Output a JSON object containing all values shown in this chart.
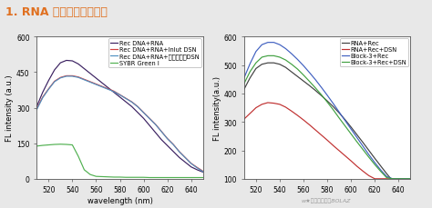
{
  "title": "1. RNA 检测技术应用比较",
  "title_color": "#e07020",
  "bg_color": "#e8e8e8",
  "left": {
    "ylabel": "FL intensity (a.u.)",
    "xlabel": "wavelength (nm)",
    "xlim": [
      510,
      650
    ],
    "ylim": [
      0,
      600
    ],
    "yticks": [
      0,
      150,
      300,
      450,
      600
    ],
    "xticks": [
      520,
      540,
      560,
      580,
      600,
      620,
      640
    ],
    "legend": [
      "Rec DNA+RNA",
      "Rec DNA+RNA+Inlut DSN",
      "Rec DNA+RNA+国外某公司DSN",
      "SYBR Green I"
    ],
    "colors": [
      "#3a2060",
      "#d04040",
      "#5090c0",
      "#50b050"
    ],
    "series": {
      "Rec DNA+RNA": {
        "x": [
          510,
          515,
          520,
          525,
          530,
          535,
          540,
          545,
          550,
          555,
          560,
          565,
          570,
          575,
          580,
          585,
          590,
          595,
          600,
          605,
          610,
          615,
          620,
          625,
          630,
          635,
          640,
          645,
          650
        ],
        "y": [
          305,
          365,
          415,
          460,
          490,
          500,
          498,
          485,
          465,
          445,
          425,
          405,
          385,
          365,
          345,
          325,
          305,
          280,
          255,
          225,
          195,
          165,
          140,
          115,
          90,
          70,
          50,
          38,
          28
        ]
      },
      "Rec DNA+RNA+Inlut DSN": {
        "x": [
          510,
          515,
          520,
          525,
          530,
          535,
          540,
          545,
          550,
          555,
          560,
          565,
          570,
          575,
          580,
          585,
          590,
          595,
          600,
          605,
          610,
          615,
          620,
          625,
          630,
          635,
          640,
          645,
          650
        ],
        "y": [
          295,
          345,
          380,
          412,
          428,
          435,
          435,
          430,
          420,
          410,
          400,
          390,
          380,
          370,
          355,
          340,
          325,
          305,
          280,
          255,
          230,
          200,
          170,
          145,
          115,
          90,
          65,
          48,
          32
        ]
      },
      "Rec DNA+RNA+国外某公司DSN": {
        "x": [
          510,
          515,
          520,
          525,
          530,
          535,
          540,
          545,
          550,
          555,
          560,
          565,
          570,
          575,
          580,
          585,
          590,
          595,
          600,
          605,
          610,
          615,
          620,
          625,
          630,
          635,
          640,
          645,
          650
        ],
        "y": [
          292,
          342,
          378,
          410,
          426,
          433,
          433,
          428,
          418,
          408,
          398,
          388,
          378,
          368,
          354,
          339,
          324,
          304,
          279,
          254,
          229,
          199,
          169,
          144,
          114,
          89,
          64,
          46,
          30
        ]
      },
      "SYBR Green I": {
        "x": [
          510,
          515,
          520,
          525,
          530,
          535,
          540,
          545,
          550,
          555,
          560,
          565,
          570,
          575,
          580,
          585,
          590,
          595,
          600,
          605,
          610,
          615,
          620,
          625,
          630,
          635,
          640,
          645,
          650
        ],
        "y": [
          138,
          141,
          143,
          145,
          146,
          145,
          143,
          95,
          38,
          18,
          10,
          9,
          8,
          7,
          7,
          6,
          6,
          6,
          6,
          5,
          5,
          5,
          5,
          5,
          5,
          5,
          5,
          5,
          5
        ]
      }
    }
  },
  "right": {
    "ylabel": "FL intensity(a.u.)",
    "xlim": [
      510,
      650
    ],
    "ylim": [
      100,
      600
    ],
    "yticks": [
      100,
      200,
      300,
      400,
      500,
      600
    ],
    "xticks": [
      520,
      540,
      560,
      580,
      600,
      620,
      640
    ],
    "legend": [
      "RNA+Rec",
      "RNA+Rec+DSN",
      "Block-3+Rec",
      "Block-3+Rec+DSN"
    ],
    "colors": [
      "#404040",
      "#c03030",
      "#4060c0",
      "#40a040"
    ],
    "series": {
      "RNA+Rec": {
        "x": [
          510,
          515,
          520,
          525,
          530,
          535,
          540,
          545,
          550,
          555,
          560,
          565,
          570,
          575,
          580,
          585,
          590,
          595,
          600,
          605,
          610,
          615,
          620,
          625,
          630,
          635,
          640,
          645,
          650
        ],
        "y": [
          415,
          455,
          488,
          503,
          508,
          508,
          503,
          492,
          476,
          460,
          444,
          428,
          411,
          393,
          374,
          354,
          332,
          308,
          282,
          255,
          228,
          200,
          172,
          145,
          118,
          93,
          68,
          48,
          28
        ]
      },
      "RNA+Rec+DSN": {
        "x": [
          510,
          515,
          520,
          525,
          530,
          535,
          540,
          545,
          550,
          555,
          560,
          565,
          570,
          575,
          580,
          585,
          590,
          595,
          600,
          605,
          610,
          615,
          620,
          625,
          630,
          635,
          640,
          645,
          650
        ],
        "y": [
          310,
          330,
          350,
          362,
          368,
          366,
          362,
          352,
          338,
          323,
          307,
          290,
          272,
          254,
          236,
          217,
          199,
          181,
          163,
          144,
          127,
          111,
          100,
          100,
          100,
          100,
          100,
          100,
          100
        ]
      },
      "Block-3+Rec": {
        "x": [
          510,
          515,
          520,
          525,
          530,
          535,
          540,
          545,
          550,
          555,
          560,
          565,
          570,
          575,
          580,
          585,
          590,
          595,
          600,
          605,
          610,
          615,
          620,
          625,
          630,
          635,
          640,
          645,
          650
        ],
        "y": [
          455,
          505,
          548,
          572,
          580,
          580,
          572,
          558,
          540,
          520,
          498,
          474,
          449,
          422,
          394,
          365,
          335,
          305,
          275,
          245,
          215,
          185,
          157,
          131,
          108,
          100,
          100,
          100,
          100
        ]
      },
      "Block-3+Rec+DSN": {
        "x": [
          510,
          515,
          520,
          525,
          530,
          535,
          540,
          545,
          550,
          555,
          560,
          565,
          570,
          575,
          580,
          585,
          590,
          595,
          600,
          605,
          610,
          615,
          620,
          625,
          630,
          635,
          640,
          645,
          650
        ],
        "y": [
          435,
          477,
          508,
          528,
          533,
          533,
          528,
          518,
          503,
          486,
          465,
          443,
          420,
          396,
          370,
          343,
          314,
          286,
          258,
          230,
          203,
          176,
          150,
          126,
          104,
          100,
          100,
          100,
          100
        ]
      }
    }
  },
  "watermark": "w★南博雷兹生物BOLAZ",
  "font_size_title": 9,
  "font_size_axis": 6,
  "font_size_tick": 5.5,
  "font_size_legend": 4.8
}
